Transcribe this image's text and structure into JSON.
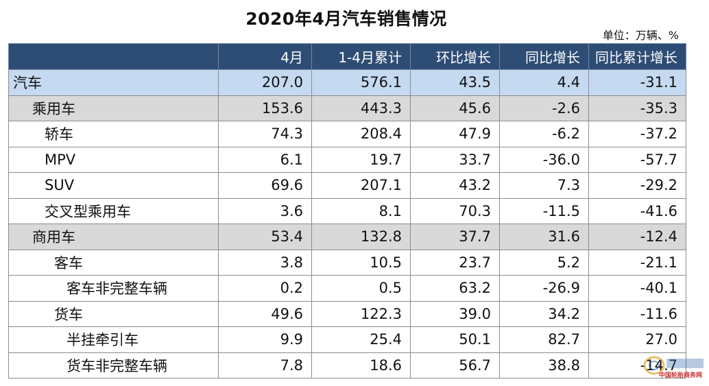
{
  "title": "2020年4月汽车销售情况",
  "unit": "单位：万辆、%",
  "columns": [
    "",
    "4月",
    "1-4月累计",
    "环比增长",
    "同比增长",
    "同比累计增长"
  ],
  "rows": [
    {
      "name": "汽车",
      "level": 0,
      "values": [
        "207.0",
        "576.1",
        "43.5",
        "4.4",
        "-31.1"
      ]
    },
    {
      "name": "乘用车",
      "level": 1,
      "values": [
        "153.6",
        "443.3",
        "45.6",
        "-2.6",
        "-35.3"
      ]
    },
    {
      "name": "轿车",
      "level": 2,
      "values": [
        "74.3",
        "208.4",
        "47.9",
        "-6.2",
        "-37.2"
      ]
    },
    {
      "name": "MPV",
      "level": 2,
      "values": [
        "6.1",
        "19.7",
        "33.7",
        "-36.0",
        "-57.7"
      ]
    },
    {
      "name": "SUV",
      "level": 2,
      "values": [
        "69.6",
        "207.1",
        "43.2",
        "7.3",
        "-29.2"
      ]
    },
    {
      "name": "交叉型乘用车",
      "level": 2,
      "values": [
        "3.6",
        "8.1",
        "70.3",
        "-11.5",
        "-41.6"
      ]
    },
    {
      "name": "商用车",
      "level": 1,
      "values": [
        "53.4",
        "132.8",
        "37.7",
        "31.6",
        "-12.4"
      ]
    },
    {
      "name": "客车",
      "level": 3,
      "values": [
        "3.8",
        "10.5",
        "23.7",
        "5.2",
        "-21.1"
      ]
    },
    {
      "name": "客车非完整车辆",
      "level": 4,
      "values": [
        "0.2",
        "0.5",
        "63.2",
        "-26.9",
        "-40.1"
      ]
    },
    {
      "name": "货车",
      "level": 3,
      "values": [
        "49.6",
        "122.3",
        "39.0",
        "34.2",
        "-11.6"
      ]
    },
    {
      "name": "半挂牵引车",
      "level": 4,
      "values": [
        "9.9",
        "25.4",
        "50.1",
        "82.7",
        "27.0"
      ]
    },
    {
      "name": "货车非完整车辆",
      "level": 4,
      "values": [
        "7.8",
        "18.6",
        "56.7",
        "38.8",
        "-14.7"
      ]
    }
  ],
  "chart_data": {
    "type": "table",
    "title": "2020年4月汽车销售情况",
    "unit": "单位：万辆、%",
    "columns": [
      "4月",
      "1-4月累计",
      "环比增长",
      "同比增长",
      "同比累计增长"
    ],
    "rows": [
      {
        "name": "汽车",
        "values": [
          207.0,
          576.1,
          43.5,
          4.4,
          -31.1
        ]
      },
      {
        "name": "乘用车",
        "values": [
          153.6,
          443.3,
          45.6,
          -2.6,
          -35.3
        ]
      },
      {
        "name": "轿车",
        "values": [
          74.3,
          208.4,
          47.9,
          -6.2,
          -37.2
        ]
      },
      {
        "name": "MPV",
        "values": [
          6.1,
          19.7,
          33.7,
          -36.0,
          -57.7
        ]
      },
      {
        "name": "SUV",
        "values": [
          69.6,
          207.1,
          43.2,
          7.3,
          -29.2
        ]
      },
      {
        "name": "交叉型乘用车",
        "values": [
          3.6,
          8.1,
          70.3,
          -11.5,
          -41.6
        ]
      },
      {
        "name": "商用车",
        "values": [
          53.4,
          132.8,
          37.7,
          31.6,
          -12.4
        ]
      },
      {
        "name": "客车",
        "values": [
          3.8,
          10.5,
          23.7,
          5.2,
          -21.1
        ]
      },
      {
        "name": "客车非完整车辆",
        "values": [
          0.2,
          0.5,
          63.2,
          -26.9,
          -40.1
        ]
      },
      {
        "name": "货车",
        "values": [
          49.6,
          122.3,
          39.0,
          34.2,
          -11.6
        ]
      },
      {
        "name": "半挂牵引车",
        "values": [
          9.9,
          25.4,
          50.1,
          82.7,
          27.0
        ]
      },
      {
        "name": "货车非完整车辆",
        "values": [
          7.8,
          18.6,
          56.7,
          38.8,
          -14.7
        ]
      }
    ]
  },
  "watermark": {
    "text": "中国轮胎商务网",
    "icon": "tire-logo-icon",
    "color": "#cc3333"
  }
}
